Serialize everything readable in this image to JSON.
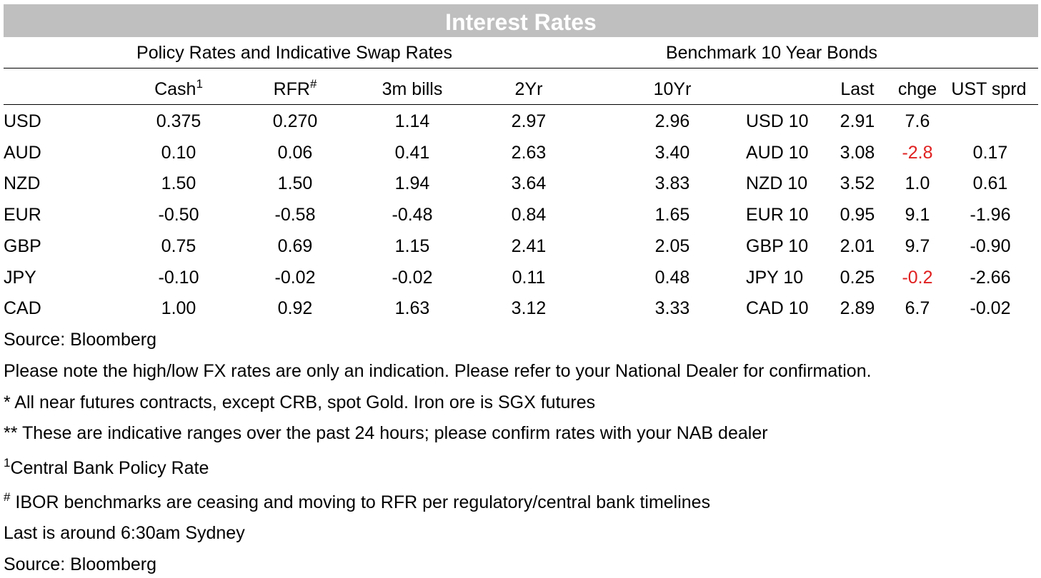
{
  "title": "Interest Rates",
  "section_left": "Policy Rates and Indicative Swap Rates",
  "section_right": "Benchmark 10 Year Bonds",
  "headers": {
    "cash": "Cash",
    "cash_sup": "1",
    "rfr": "RFR",
    "rfr_sup": "#",
    "bills": "3m bills",
    "yr2": "2Yr",
    "yr10": "10Yr",
    "last": "Last",
    "chge": "chge",
    "ust": "UST sprd"
  },
  "rows": [
    {
      "ccy": "USD",
      "cash": "0.375",
      "rfr": "0.270",
      "bills": "1.14",
      "yr2": "2.97",
      "yr10": "2.96",
      "bond": "USD 10",
      "last": "2.91",
      "chge": "7.6",
      "chge_neg": false,
      "ust": ""
    },
    {
      "ccy": "AUD",
      "cash": "0.10",
      "rfr": "0.06",
      "bills": "0.41",
      "yr2": "2.63",
      "yr10": "3.40",
      "bond": "AUD 10",
      "last": "3.08",
      "chge": "-2.8",
      "chge_neg": true,
      "ust": "0.17"
    },
    {
      "ccy": "NZD",
      "cash": "1.50",
      "rfr": "1.50",
      "bills": "1.94",
      "yr2": "3.64",
      "yr10": "3.83",
      "bond": "NZD 10",
      "last": "3.52",
      "chge": "1.0",
      "chge_neg": false,
      "ust": "0.61"
    },
    {
      "ccy": "EUR",
      "cash": "-0.50",
      "rfr": "-0.58",
      "bills": "-0.48",
      "yr2": "0.84",
      "yr10": "1.65",
      "bond": "EUR 10",
      "last": "0.95",
      "chge": "9.1",
      "chge_neg": false,
      "ust": "-1.96"
    },
    {
      "ccy": "GBP",
      "cash": "0.75",
      "rfr": "0.69",
      "bills": "1.15",
      "yr2": "2.41",
      "yr10": "2.05",
      "bond": "GBP 10",
      "last": "2.01",
      "chge": "9.7",
      "chge_neg": false,
      "ust": "-0.90"
    },
    {
      "ccy": "JPY",
      "cash": "-0.10",
      "rfr": "-0.02",
      "bills": "-0.02",
      "yr2": "0.11",
      "yr10": "0.48",
      "bond": "JPY 10",
      "last": "0.25",
      "chge": "-0.2",
      "chge_neg": true,
      "ust": "-2.66"
    },
    {
      "ccy": "CAD",
      "cash": "1.00",
      "rfr": "0.92",
      "bills": "1.63",
      "yr2": "3.12",
      "yr10": "3.33",
      "bond": "CAD 10",
      "last": "2.89",
      "chge": "6.7",
      "chge_neg": false,
      "ust": "-0.02"
    }
  ],
  "notes": {
    "source1": "Source: Bloomberg",
    "fx_note": "Please note the high/low FX rates are only an indication. Please refer to your National Dealer for confirmation.",
    "futures_note": "* All near futures contracts, except CRB, spot Gold.  Iron ore is SGX futures",
    "ranges_note": "** These are indicative ranges over the past 24 hours; please confirm rates with your NAB dealer",
    "cb_sup": "1",
    "cb_note": "Central Bank Policy Rate",
    "ibor_sup": "#",
    "ibor_note": " IBOR benchmarks are ceasing and moving to RFR per regulatory/central bank timelines",
    "last_note": "Last is around 6:30am Sydney",
    "source2": "Source: Bloomberg"
  },
  "colors": {
    "header_bg": "#bfbfbf",
    "negative": "#e02020"
  }
}
